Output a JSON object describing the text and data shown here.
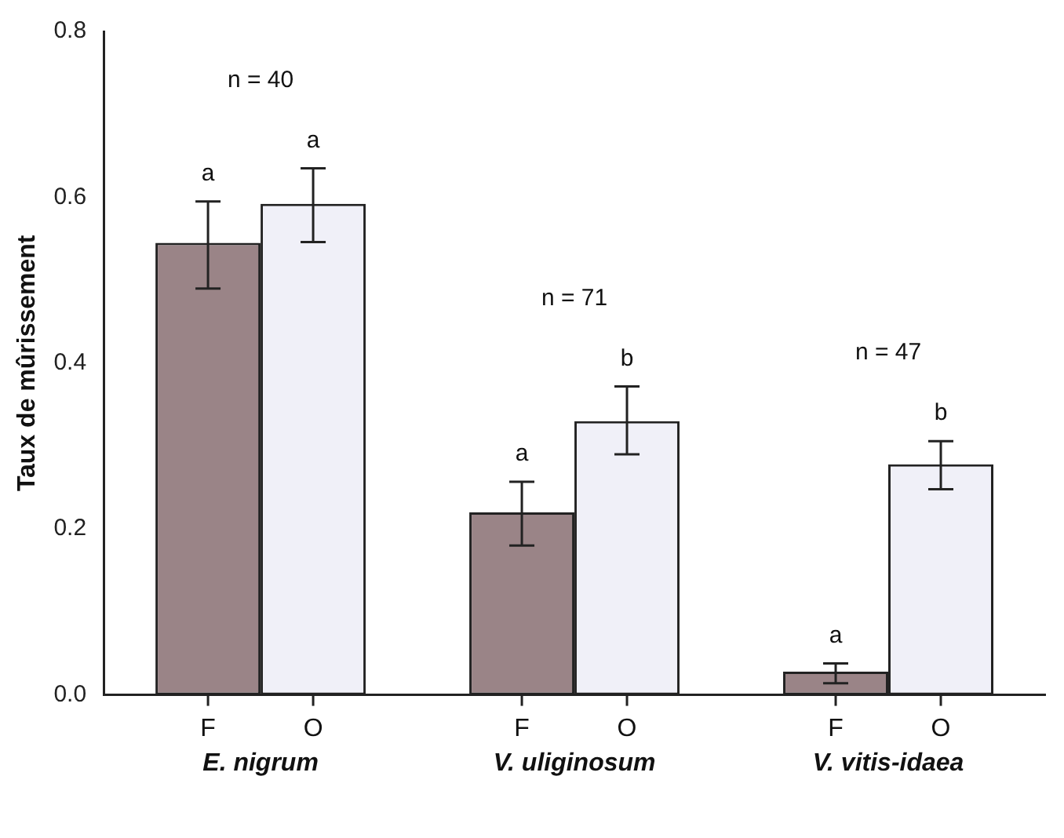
{
  "chart_data": {
    "type": "bar",
    "ylabel": "Taux de mûrissement",
    "categories": [
      "E. nigrum",
      "V. uliginosum",
      "V. vitis-idaea"
    ],
    "series": [
      {
        "name": "F",
        "color": "#9a8487",
        "values": [
          0.545,
          0.22,
          0.028
        ],
        "errors": [
          [
            0.49,
            0.595
          ],
          [
            0.18,
            0.257
          ],
          [
            0.014,
            0.038
          ]
        ],
        "value_labels": [
          "a",
          "a",
          "a"
        ]
      },
      {
        "name": "O",
        "color": "#f0f0f8",
        "values": [
          0.592,
          0.33,
          0.278
        ],
        "errors": [
          [
            0.546,
            0.635
          ],
          [
            0.29,
            0.372
          ],
          [
            0.248,
            0.306
          ]
        ],
        "value_labels": [
          "a",
          "b",
          "b"
        ]
      }
    ],
    "ylim": [
      0,
      0.8
    ],
    "yticks": [
      {
        "value": 0,
        "label": "0.0"
      },
      0.2,
      0.4,
      0.6,
      0.8
    ],
    "grid": false,
    "legend": false,
    "annotations": [
      "n = 40",
      "n = 71",
      "n = 47"
    ]
  }
}
